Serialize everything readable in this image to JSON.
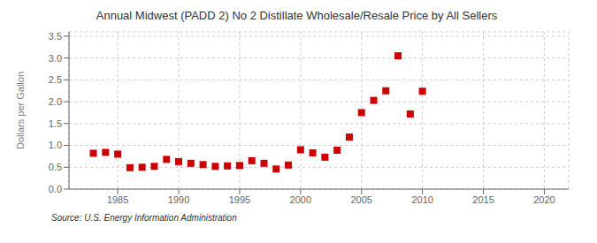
{
  "chart_data": {
    "type": "scatter",
    "title": "Annual Midwest (PADD 2) No 2 Distillate Wholesale/Resale Price by All Sellers",
    "ylabel": "Dollars per Gallon",
    "annotations": [
      "Source: U.S. Energy Information Administration"
    ],
    "x": [
      1983,
      1984,
      1985,
      1986,
      1987,
      1988,
      1989,
      1990,
      1991,
      1992,
      1993,
      1994,
      1995,
      1996,
      1997,
      1998,
      1999,
      2000,
      2001,
      2002,
      2003,
      2004,
      2005,
      2006,
      2007,
      2008,
      2009,
      2010
    ],
    "values": [
      0.82,
      0.84,
      0.8,
      0.49,
      0.5,
      0.52,
      0.68,
      0.63,
      0.59,
      0.56,
      0.52,
      0.53,
      0.54,
      0.65,
      0.59,
      0.46,
      0.55,
      0.9,
      0.83,
      0.73,
      0.89,
      1.19,
      1.75,
      2.03,
      2.25,
      3.05,
      1.72,
      2.24
    ],
    "color": "#cc0000",
    "marker": "square",
    "xlim": [
      1981,
      2022
    ],
    "ylim": [
      0.0,
      3.6
    ],
    "xticks": [
      1985,
      1990,
      1995,
      2000,
      2005,
      2010,
      2015,
      2020
    ],
    "yticks": [
      {
        "value": 0,
        "label": "0.0"
      },
      0.5,
      {
        "value": 1,
        "label": "1.0"
      },
      1.5,
      {
        "value": 2,
        "label": "2.0"
      },
      2.5,
      {
        "value": 3,
        "label": "3.0"
      },
      3.5
    ],
    "grid": true
  }
}
